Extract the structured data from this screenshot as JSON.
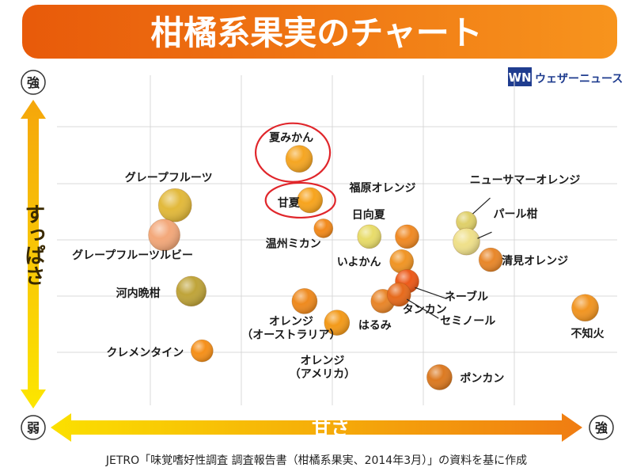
{
  "header": {
    "title": "柑橘系果実のチャート",
    "logo_text": "ウェザーニュース",
    "logo_mark": "WN"
  },
  "footer": {
    "source": "JETRO「味覚嗜好性調査 調査報告書（柑橘系果実、2014年3月）」の資料を基に作成"
  },
  "colors": {
    "banner_dark": "#e85a0a",
    "banner_light": "#f7941d",
    "grid": "#d9d9d9",
    "y_arrow_top": "#f5a60b",
    "y_arrow_bottom": "#fce600",
    "x_arrow_left": "#fbe000",
    "x_arrow_right": "#f07c12",
    "highlight_ring": "#e0262b",
    "logo_blue": "#1f3c8f"
  },
  "chart_data": {
    "type": "scatter",
    "xlabel": "甘さ",
    "ylabel": "すっぱさ",
    "x_low_label": "弱",
    "x_high_label": "強",
    "y_high_label": "強",
    "xlim": [
      0,
      10
    ],
    "ylim": [
      0,
      10
    ],
    "grid": true,
    "points": [
      {
        "label": "夏みかん",
        "x": 4.4,
        "y": 7.4,
        "color": "#f5a623",
        "highlight": true
      },
      {
        "label": "甘夏",
        "x": 4.6,
        "y": 6.15,
        "color": "#f7a41e",
        "highlight": true
      },
      {
        "label": "グレープフルーツ",
        "x": 2.1,
        "y": 6.0,
        "color": "#e2b93b",
        "highlight": false
      },
      {
        "label": "グレープフルーツルビー",
        "x": 1.9,
        "y": 5.1,
        "color": "#f3a87a",
        "highlight": false
      },
      {
        "label": "温州ミカン",
        "x": 4.85,
        "y": 5.3,
        "color": "#f28a1c",
        "highlight": false
      },
      {
        "label": "福原オレンジ",
        "x": 6.4,
        "y": 5.05,
        "color": "#f08a24",
        "highlight": false
      },
      {
        "label": "ニューサマーオレンジ",
        "x": 7.5,
        "y": 5.5,
        "color": "#dfd06a",
        "highlight": false
      },
      {
        "label": "パール柑",
        "x": 7.5,
        "y": 4.9,
        "color": "#efe08a",
        "highlight": false
      },
      {
        "label": "日向夏",
        "x": 5.7,
        "y": 5.05,
        "color": "#e8dc6a",
        "highlight": false
      },
      {
        "label": "清見オレンジ",
        "x": 7.95,
        "y": 4.35,
        "color": "#e8872a",
        "highlight": false
      },
      {
        "label": "いよかん",
        "x": 6.3,
        "y": 4.3,
        "color": "#f09525",
        "highlight": false
      },
      {
        "label": "ネーブル",
        "x": 6.4,
        "y": 3.7,
        "color": "#ec5a1a",
        "highlight": false
      },
      {
        "label": "河内晩柑",
        "x": 2.4,
        "y": 3.4,
        "color": "#bfa43a",
        "highlight": false
      },
      {
        "label": "タンカン",
        "x": 5.95,
        "y": 3.1,
        "color": "#e8862a",
        "highlight": false
      },
      {
        "label": "セミノール",
        "x": 6.25,
        "y": 3.3,
        "color": "#e66a1c",
        "highlight": false
      },
      {
        "label": "オレンジ（オーストラリア）",
        "x": 4.5,
        "y": 3.1,
        "color": "#ee8a1f",
        "highlight": false
      },
      {
        "label": "はるみ",
        "x": 5.1,
        "y": 2.45,
        "color": "#f39a1a",
        "highlight": false
      },
      {
        "label": "不知火",
        "x": 9.7,
        "y": 2.9,
        "color": "#f19522",
        "highlight": false
      },
      {
        "label": "クレメンタイン",
        "x": 2.6,
        "y": 1.6,
        "color": "#f5901a",
        "highlight": false
      },
      {
        "label": "オレンジ（アメリカ）",
        "x": 4.2,
        "y": 1.0,
        "color": "#ffffff",
        "highlight": false
      },
      {
        "label": "ポンカン",
        "x": 7.0,
        "y": 0.8,
        "color": "#dc7a22",
        "highlight": false
      }
    ]
  }
}
